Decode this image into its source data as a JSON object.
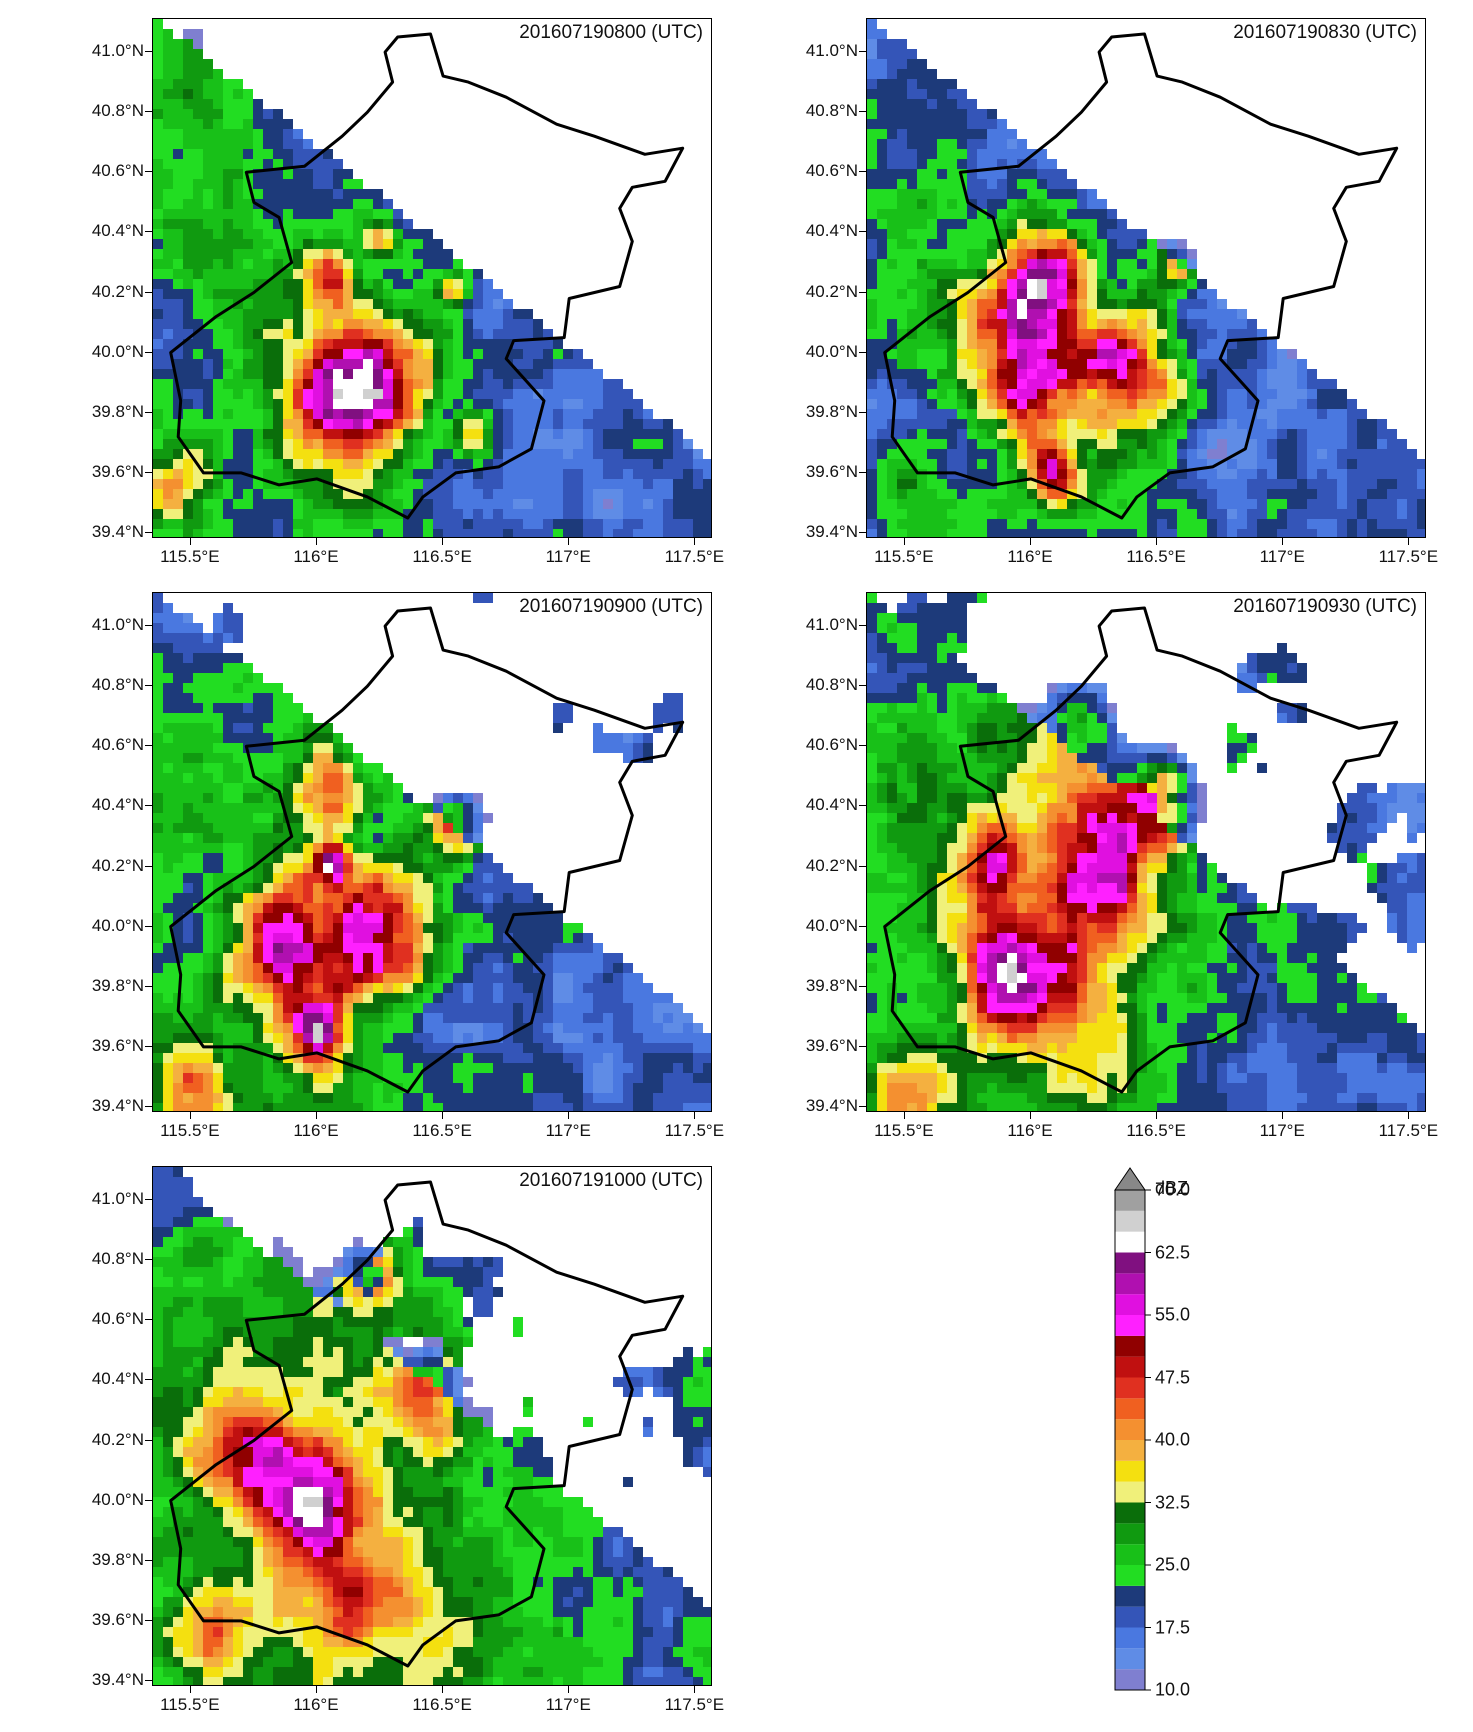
{
  "panels": [
    {
      "time": "201607190800 (UTC)",
      "stage": 0
    },
    {
      "time": "201607190830 (UTC)",
      "stage": 1
    },
    {
      "time": "201607190900 (UTC)",
      "stage": 2
    },
    {
      "time": "201607190930 (UTC)",
      "stage": 3
    },
    {
      "time": "201607191000 (UTC)",
      "stage": 4
    }
  ],
  "axes": {
    "lat_labels": [
      "41.0°N",
      "40.8°N",
      "40.6°N",
      "40.4°N",
      "40.2°N",
      "40.0°N",
      "39.8°N",
      "39.6°N",
      "39.4°N"
    ],
    "lon_labels": [
      "115.5°E",
      "116°E",
      "116.5°E",
      "117°E",
      "117.5°E"
    ],
    "lat_values": [
      41.0,
      40.8,
      40.6,
      40.4,
      40.2,
      40.0,
      39.8,
      39.6,
      39.4
    ],
    "lon_values": [
      115.5,
      116.0,
      116.5,
      117.0,
      117.5
    ],
    "lat_range": [
      39.38,
      41.11
    ],
    "lon_range": [
      115.35,
      117.57
    ]
  },
  "colorbar": {
    "unit": "dBZ",
    "labels": [
      "70.0",
      "62.5",
      "55.0",
      "47.5",
      "40.0",
      "32.5",
      "25.0",
      "17.5",
      "10.0"
    ],
    "label_values": [
      70.0,
      62.5,
      55.0,
      47.5,
      40.0,
      32.5,
      25.0,
      17.5,
      10.0
    ],
    "min": 10.0,
    "max": 70.0,
    "extend": "max",
    "levels": [
      {
        "from": 10.0,
        "color": "#7f7fd0"
      },
      {
        "from": 12.5,
        "color": "#5f8ce6"
      },
      {
        "from": 15.0,
        "color": "#4a78e0"
      },
      {
        "from": 17.5,
        "color": "#3455b8"
      },
      {
        "from": 20.0,
        "color": "#1d3a7a"
      },
      {
        "from": 22.5,
        "color": "#22dd22"
      },
      {
        "from": 25.0,
        "color": "#18c018"
      },
      {
        "from": 27.5,
        "color": "#109a10"
      },
      {
        "from": 30.0,
        "color": "#0a6e0a"
      },
      {
        "from": 32.5,
        "color": "#f0f07a"
      },
      {
        "from": 35.0,
        "color": "#f4e010"
      },
      {
        "from": 37.5,
        "color": "#f4b040"
      },
      {
        "from": 40.0,
        "color": "#f49030"
      },
      {
        "from": 42.5,
        "color": "#f06020"
      },
      {
        "from": 45.0,
        "color": "#e03020"
      },
      {
        "from": 47.5,
        "color": "#c01010"
      },
      {
        "from": 50.0,
        "color": "#900000"
      },
      {
        "from": 52.5,
        "color": "#ff20ff"
      },
      {
        "from": 55.0,
        "color": "#e010e0"
      },
      {
        "from": 57.5,
        "color": "#b010b0"
      },
      {
        "from": 60.0,
        "color": "#801080"
      },
      {
        "from": 62.5,
        "color": "#ffffff"
      },
      {
        "from": 65.0,
        "color": "#d0d0d0"
      },
      {
        "from": 67.5,
        "color": "#a0a0a0"
      }
    ]
  },
  "boundary_color": "#000000"
}
